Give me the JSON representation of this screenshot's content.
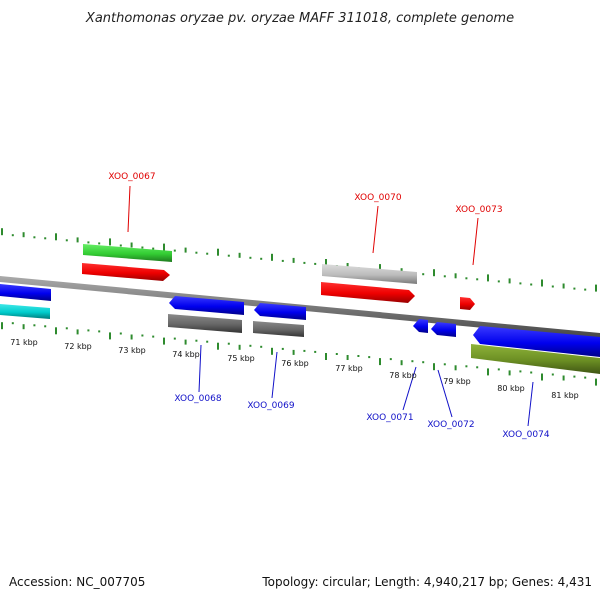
{
  "title": "Xanthomonas oryzae pv. oryzae MAFF 311018, complete genome",
  "footer": {
    "accession": "Accession: NC_007705",
    "summary": "Topology: circular; Length: 4,940,217 bp; Genes: 4,431"
  },
  "colors": {
    "backbone": "#888888",
    "tick": "#2e8b2e",
    "label_top": "#e00000",
    "label_bottom": "#1010c8"
  },
  "kbp_labels": [
    "71 kbp",
    "72 kbp",
    "73 kbp",
    "74 kbp",
    "75 kbp",
    "76 kbp",
    "77 kbp",
    "78 kbp",
    "79 kbp",
    "80 kbp",
    "81 kbp"
  ],
  "genes_top": [
    {
      "label": "XOO_0067",
      "color": "#e00000"
    },
    {
      "label": "XOO_0070",
      "color": "#e00000"
    },
    {
      "label": "XOO_0073",
      "color": "#e00000"
    }
  ],
  "genes_bottom": [
    {
      "label": "XOO_0068",
      "color": "#1010c8"
    },
    {
      "label": "XOO_0069",
      "color": "#1010c8"
    },
    {
      "label": "XOO_0071",
      "color": "#1010c8"
    },
    {
      "label": "XOO_0072",
      "color": "#1010c8"
    },
    {
      "label": "XOO_0074",
      "color": "#1010c8"
    }
  ],
  "feature_colors": {
    "cds_forward": "#ff0000",
    "cds_reverse": "#0000ff",
    "gene_green": "#33cc33",
    "gene_cyan": "#00cccc",
    "gene_gray_light": "#bbbbbb",
    "gene_gray_dark": "#666666",
    "gene_olive": "#6b8e23"
  }
}
